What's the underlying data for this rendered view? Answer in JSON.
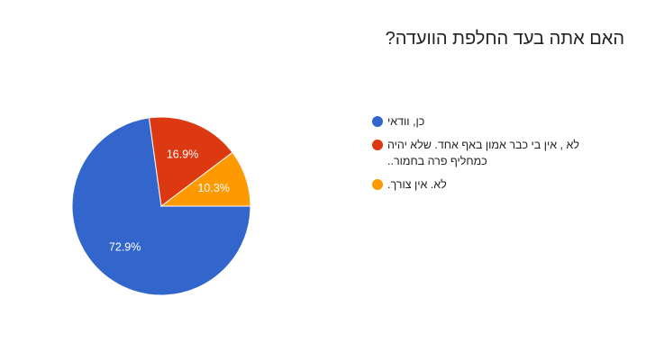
{
  "chart_data": {
    "type": "pie",
    "title": "האם אתה בעד החלפת הוועדה?",
    "categories": [
      "כן, וודאי",
      "לא , אין בי כבר אמון באף אחד. שלא יהיה כמחליף פרה בחמור..",
      "לא. אין צורך."
    ],
    "values": [
      72.9,
      16.9,
      10.3
    ],
    "value_labels": [
      "72.9%",
      "16.9%",
      "10.3%"
    ],
    "colors": [
      "#3366cc",
      "#dc3912",
      "#ff9900"
    ]
  }
}
